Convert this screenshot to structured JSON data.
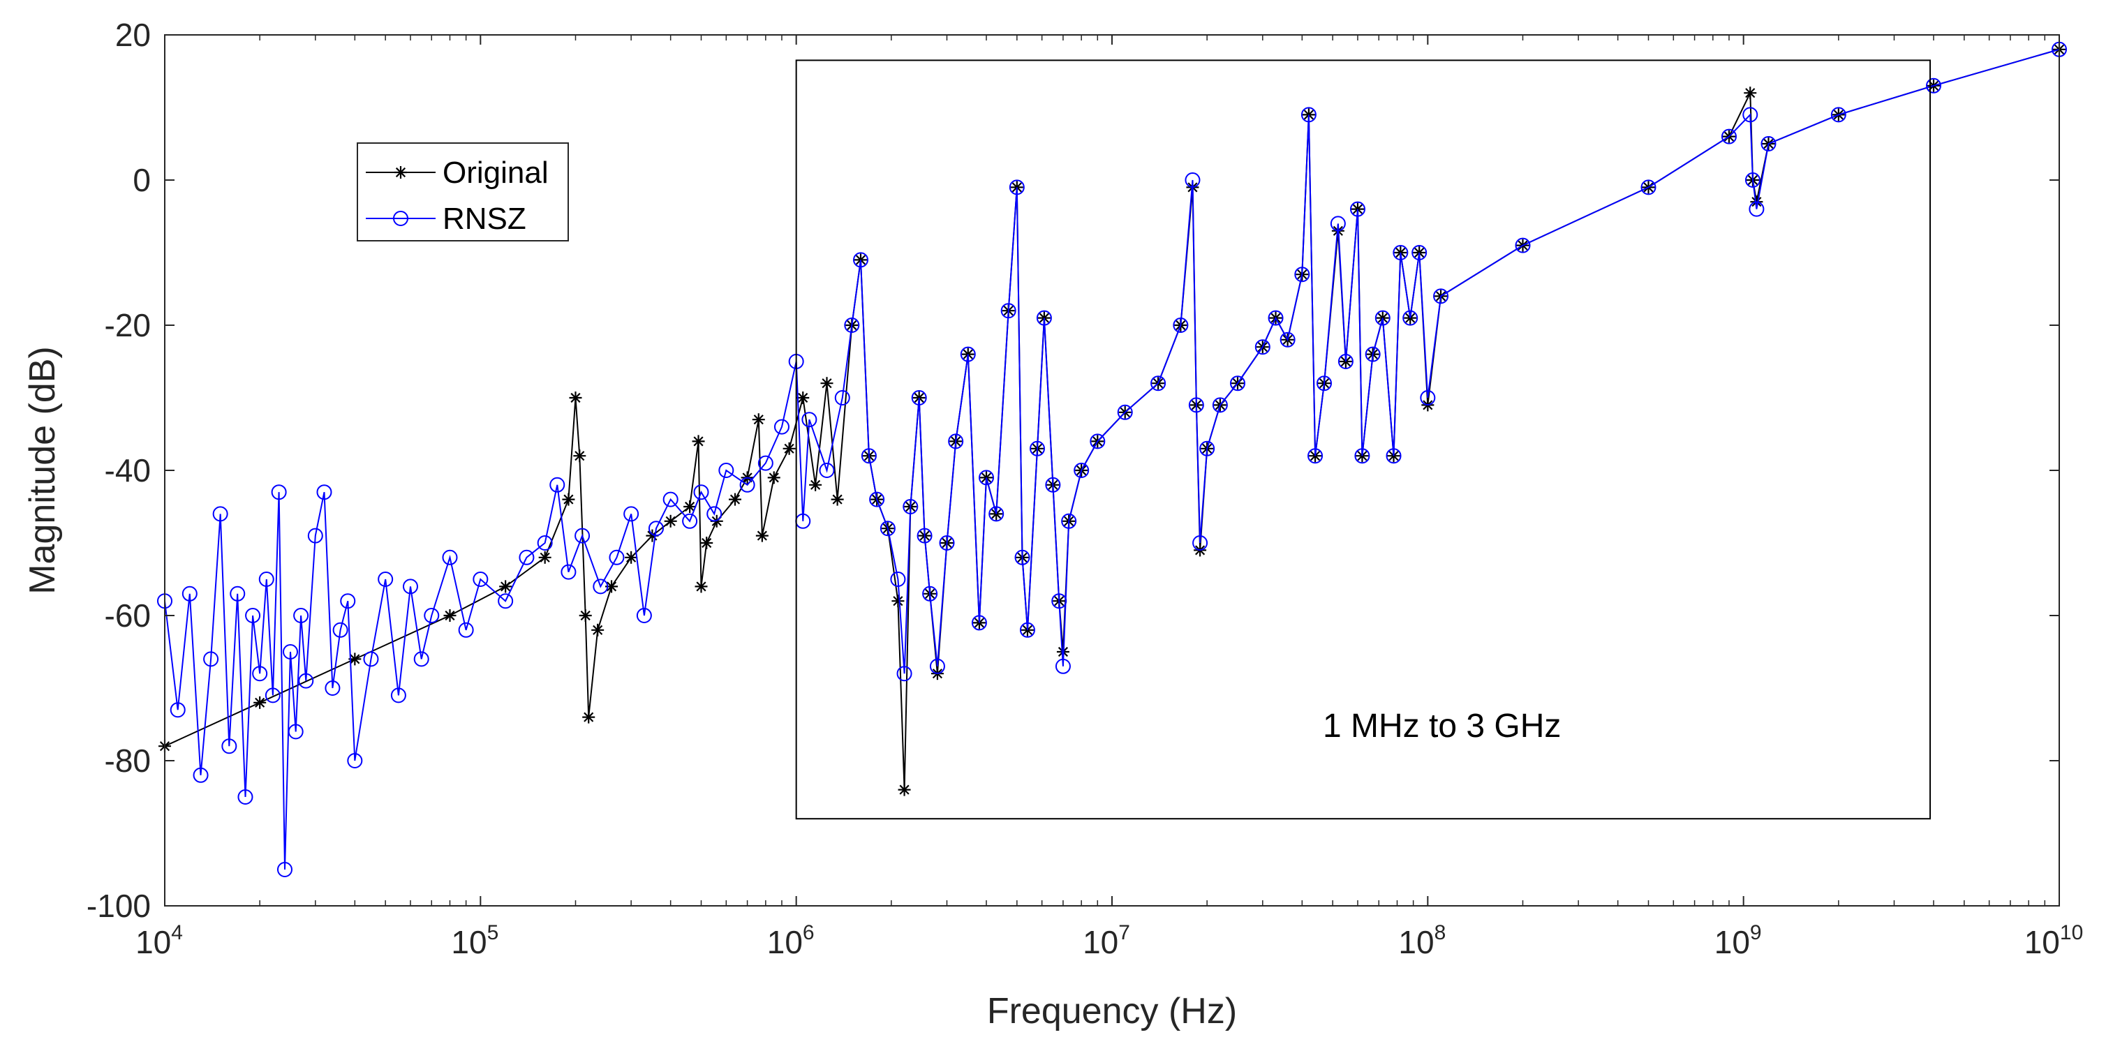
{
  "chart_data": {
    "type": "line",
    "title": "",
    "xlabel": "Frequency (Hz)",
    "ylabel": "Magnitude (dB)",
    "xscale": "log",
    "xlim": [
      10000,
      10000000000
    ],
    "ylim": [
      -100,
      20
    ],
    "xticks": [
      {
        "value": 10000,
        "base": "10",
        "exp": "4"
      },
      {
        "value": 100000,
        "base": "10",
        "exp": "5"
      },
      {
        "value": 1000000,
        "base": "10",
        "exp": "6"
      },
      {
        "value": 10000000,
        "base": "10",
        "exp": "7"
      },
      {
        "value": 100000000,
        "base": "10",
        "exp": "8"
      },
      {
        "value": 1000000000,
        "base": "10",
        "exp": "9"
      },
      {
        "value": 10000000000,
        "base": "10",
        "exp": "10"
      }
    ],
    "yticks": [
      {
        "value": 20,
        "label": "20"
      },
      {
        "value": 0,
        "label": "0"
      },
      {
        "value": -20,
        "label": "-20"
      },
      {
        "value": -40,
        "label": "-40"
      },
      {
        "value": -60,
        "label": "-60"
      },
      {
        "value": -80,
        "label": "-80"
      },
      {
        "value": -100,
        "label": "-100"
      }
    ],
    "legend": {
      "position": "upper-left",
      "entries": [
        "Original",
        "RNSZ"
      ]
    },
    "annotation": {
      "text": "1 MHz to 3 GHz",
      "box_x_range": [
        1000000,
        3900000000
      ],
      "box_y_range": [
        -88,
        16.5
      ]
    },
    "series": [
      {
        "name": "Original",
        "color": "#000000",
        "marker": "asterisk",
        "points": [
          [
            10000,
            -78
          ],
          [
            20000,
            -72
          ],
          [
            40000,
            -66
          ],
          [
            80000,
            -60
          ],
          [
            120000,
            -56
          ],
          [
            160000,
            -52
          ],
          [
            190000,
            -44
          ],
          [
            200000,
            -30
          ],
          [
            206000,
            -38
          ],
          [
            215000,
            -60
          ],
          [
            220000,
            -74
          ],
          [
            235000,
            -62
          ],
          [
            260000,
            -56
          ],
          [
            300000,
            -52
          ],
          [
            350000,
            -49
          ],
          [
            400000,
            -47
          ],
          [
            460000,
            -45
          ],
          [
            490000,
            -36
          ],
          [
            500000,
            -56
          ],
          [
            520000,
            -50
          ],
          [
            560000,
            -47
          ],
          [
            640000,
            -44
          ],
          [
            700000,
            -41
          ],
          [
            760000,
            -33
          ],
          [
            780000,
            -49
          ],
          [
            850000,
            -41
          ],
          [
            950000,
            -37
          ],
          [
            1050000,
            -30
          ],
          [
            1150000,
            -42
          ],
          [
            1250000,
            -28
          ],
          [
            1350000,
            -44
          ],
          [
            1500000,
            -20
          ],
          [
            1600000,
            -11
          ],
          [
            1700000,
            -38
          ],
          [
            1800000,
            -44
          ],
          [
            1950000,
            -48
          ],
          [
            2100000,
            -58
          ],
          [
            2200000,
            -84
          ],
          [
            2300000,
            -45
          ],
          [
            2450000,
            -30
          ],
          [
            2550000,
            -49
          ],
          [
            2650000,
            -57
          ],
          [
            2800000,
            -68
          ],
          [
            3000000,
            -50
          ],
          [
            3200000,
            -36
          ],
          [
            3500000,
            -24
          ],
          [
            3800000,
            -61
          ],
          [
            4000000,
            -41
          ],
          [
            4300000,
            -46
          ],
          [
            4700000,
            -18
          ],
          [
            5000000,
            -1
          ],
          [
            5200000,
            -52
          ],
          [
            5400000,
            -62
          ],
          [
            5800000,
            -37
          ],
          [
            6100000,
            -19
          ],
          [
            6500000,
            -42
          ],
          [
            6800000,
            -58
          ],
          [
            7000000,
            -65
          ],
          [
            7300000,
            -47
          ],
          [
            8000000,
            -40
          ],
          [
            9000000,
            -36
          ],
          [
            11000000,
            -32
          ],
          [
            14000000,
            -28
          ],
          [
            16500000,
            -20
          ],
          [
            18000000,
            -1
          ],
          [
            18500000,
            -31
          ],
          [
            19000000,
            -51
          ],
          [
            20000000,
            -37
          ],
          [
            22000000,
            -31
          ],
          [
            25000000,
            -28
          ],
          [
            30000000,
            -23
          ],
          [
            33000000,
            -19
          ],
          [
            36000000,
            -22
          ],
          [
            40000000,
            -13
          ],
          [
            42000000,
            9
          ],
          [
            44000000,
            -38
          ],
          [
            47000000,
            -28
          ],
          [
            52000000,
            -7
          ],
          [
            55000000,
            -25
          ],
          [
            60000000,
            -4
          ],
          [
            62000000,
            -38
          ],
          [
            67000000,
            -24
          ],
          [
            72000000,
            -19
          ],
          [
            78000000,
            -38
          ],
          [
            82000000,
            -10
          ],
          [
            88000000,
            -19
          ],
          [
            94000000,
            -10
          ],
          [
            100000000,
            -31
          ],
          [
            110000000,
            -16
          ],
          [
            200000000,
            -9
          ],
          [
            500000000,
            -1
          ],
          [
            900000000,
            6
          ],
          [
            1050000000,
            12
          ],
          [
            1070000000,
            0
          ],
          [
            1100000000,
            -3
          ],
          [
            1200000000,
            5
          ],
          [
            2000000000,
            9
          ],
          [
            4000000000,
            13
          ],
          [
            10000000000,
            18
          ]
        ]
      },
      {
        "name": "RNSZ",
        "color": "#0000ff",
        "marker": "circle",
        "points": [
          [
            10000,
            -58
          ],
          [
            11000,
            -73
          ],
          [
            12000,
            -57
          ],
          [
            13000,
            -82
          ],
          [
            14000,
            -66
          ],
          [
            15000,
            -46
          ],
          [
            16000,
            -78
          ],
          [
            17000,
            -57
          ],
          [
            18000,
            -85
          ],
          [
            19000,
            -60
          ],
          [
            20000,
            -68
          ],
          [
            21000,
            -55
          ],
          [
            22000,
            -71
          ],
          [
            23000,
            -43
          ],
          [
            24000,
            -95
          ],
          [
            25000,
            -65
          ],
          [
            26000,
            -76
          ],
          [
            27000,
            -60
          ],
          [
            28000,
            -69
          ],
          [
            30000,
            -49
          ],
          [
            32000,
            -43
          ],
          [
            34000,
            -70
          ],
          [
            36000,
            -62
          ],
          [
            38000,
            -58
          ],
          [
            40000,
            -80
          ],
          [
            45000,
            -66
          ],
          [
            50000,
            -55
          ],
          [
            55000,
            -71
          ],
          [
            60000,
            -56
          ],
          [
            65000,
            -66
          ],
          [
            70000,
            -60
          ],
          [
            80000,
            -52
          ],
          [
            90000,
            -62
          ],
          [
            100000,
            -55
          ],
          [
            120000,
            -58
          ],
          [
            140000,
            -52
          ],
          [
            160000,
            -50
          ],
          [
            175000,
            -42
          ],
          [
            190000,
            -54
          ],
          [
            210000,
            -49
          ],
          [
            240000,
            -56
          ],
          [
            270000,
            -52
          ],
          [
            300000,
            -46
          ],
          [
            330000,
            -60
          ],
          [
            360000,
            -48
          ],
          [
            400000,
            -44
          ],
          [
            460000,
            -47
          ],
          [
            500000,
            -43
          ],
          [
            550000,
            -46
          ],
          [
            600000,
            -40
          ],
          [
            700000,
            -42
          ],
          [
            800000,
            -39
          ],
          [
            900000,
            -34
          ],
          [
            1000000,
            -25
          ],
          [
            1050000,
            -47
          ],
          [
            1100000,
            -33
          ],
          [
            1250000,
            -40
          ],
          [
            1400000,
            -30
          ],
          [
            1500000,
            -20
          ],
          [
            1600000,
            -11
          ],
          [
            1700000,
            -38
          ],
          [
            1800000,
            -44
          ],
          [
            1950000,
            -48
          ],
          [
            2100000,
            -55
          ],
          [
            2200000,
            -68
          ],
          [
            2300000,
            -45
          ],
          [
            2450000,
            -30
          ],
          [
            2550000,
            -49
          ],
          [
            2650000,
            -57
          ],
          [
            2800000,
            -67
          ],
          [
            3000000,
            -50
          ],
          [
            3200000,
            -36
          ],
          [
            3500000,
            -24
          ],
          [
            3800000,
            -61
          ],
          [
            4000000,
            -41
          ],
          [
            4300000,
            -46
          ],
          [
            4700000,
            -18
          ],
          [
            5000000,
            -1
          ],
          [
            5200000,
            -52
          ],
          [
            5400000,
            -62
          ],
          [
            5800000,
            -37
          ],
          [
            6100000,
            -19
          ],
          [
            6500000,
            -42
          ],
          [
            6800000,
            -58
          ],
          [
            7000000,
            -67
          ],
          [
            7300000,
            -47
          ],
          [
            8000000,
            -40
          ],
          [
            9000000,
            -36
          ],
          [
            11000000,
            -32
          ],
          [
            14000000,
            -28
          ],
          [
            16500000,
            -20
          ],
          [
            18000000,
            0
          ],
          [
            18500000,
            -31
          ],
          [
            19000000,
            -50
          ],
          [
            20000000,
            -37
          ],
          [
            22000000,
            -31
          ],
          [
            25000000,
            -28
          ],
          [
            30000000,
            -23
          ],
          [
            33000000,
            -19
          ],
          [
            36000000,
            -22
          ],
          [
            40000000,
            -13
          ],
          [
            42000000,
            9
          ],
          [
            44000000,
            -38
          ],
          [
            47000000,
            -28
          ],
          [
            52000000,
            -6
          ],
          [
            55000000,
            -25
          ],
          [
            60000000,
            -4
          ],
          [
            62000000,
            -38
          ],
          [
            67000000,
            -24
          ],
          [
            72000000,
            -19
          ],
          [
            78000000,
            -38
          ],
          [
            82000000,
            -10
          ],
          [
            88000000,
            -19
          ],
          [
            94000000,
            -10
          ],
          [
            100000000,
            -30
          ],
          [
            110000000,
            -16
          ],
          [
            200000000,
            -9
          ],
          [
            500000000,
            -1
          ],
          [
            900000000,
            6
          ],
          [
            1050000000,
            9
          ],
          [
            1070000000,
            0
          ],
          [
            1100000000,
            -4
          ],
          [
            1200000000,
            5
          ],
          [
            2000000000,
            9
          ],
          [
            4000000000,
            13
          ],
          [
            10000000000,
            18
          ]
        ]
      }
    ]
  }
}
